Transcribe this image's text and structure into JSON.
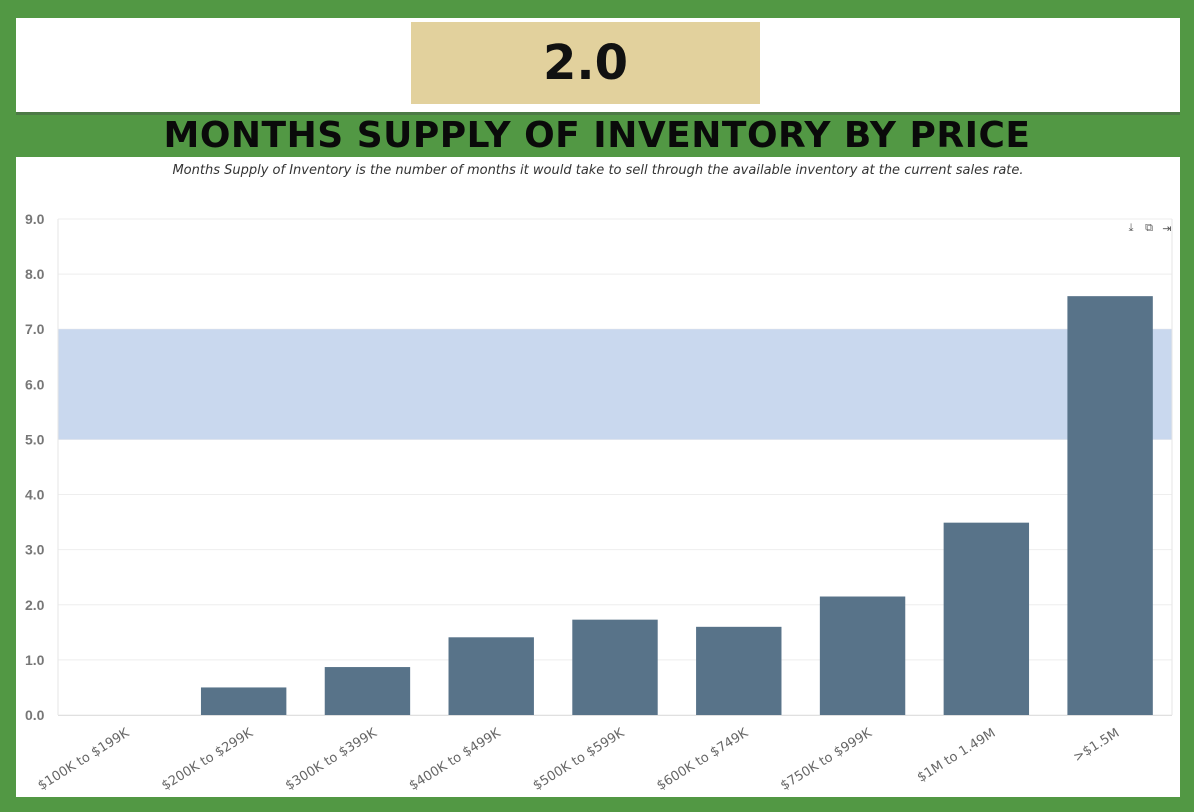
{
  "stat": {
    "value": "2.0"
  },
  "title": "MONTHS SUPPLY OF INVENTORY BY PRICE",
  "subtitle": "Months Supply of Inventory is the number of months it would take to sell through the available inventory at the current sales rate.",
  "toolbar": {
    "icons": [
      "download-icon",
      "copy-icon",
      "export-icon"
    ]
  },
  "colors": {
    "page_background": "#529844",
    "stat_box": "#e2d19d",
    "bar": "#587389",
    "band": "#c9d8ee",
    "grid": "#eeeeee"
  },
  "chart_data": {
    "type": "bar",
    "categories": [
      "$100K to $199K",
      "$200K to $299K",
      "$300K to $399K",
      "$400K to $499K",
      "$500K to $599K",
      "$600K to $749K",
      "$750K to $999K",
      "$1M to 1.49M",
      ">$1.5M"
    ],
    "values": [
      0,
      0.5,
      0.87,
      1.41,
      1.73,
      1.6,
      2.15,
      3.49,
      7.6
    ],
    "ylim": [
      0,
      9
    ],
    "yticks": [
      "0.0",
      "1.0",
      "2.0",
      "3.0",
      "4.0",
      "5.0",
      "6.0",
      "7.0",
      "8.0",
      "9.0"
    ],
    "band": {
      "from": 5,
      "to": 7
    },
    "grid": true,
    "xlabel": "",
    "ylabel": ""
  }
}
